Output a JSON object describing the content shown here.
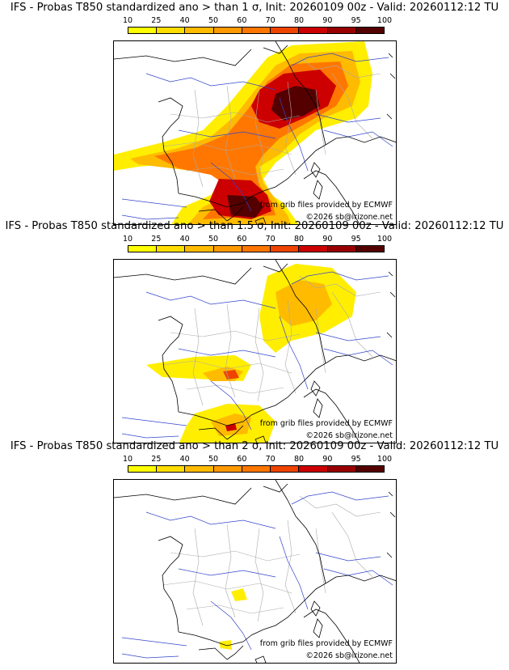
{
  "colorbar": {
    "ticks": [
      "10",
      "25",
      "40",
      "50",
      "60",
      "70",
      "80",
      "90",
      "95",
      "100"
    ],
    "colors": [
      "#ffff00",
      "#ffdd00",
      "#ffbb00",
      "#ff9900",
      "#ff7700",
      "#ee4400",
      "#cc0000",
      "#990000",
      "#550000"
    ]
  },
  "panels": [
    {
      "title": "IFS - Probas T850  standardized ano > than 1 σ, Init: 20260109 00z - Valid: 20260112:12 TU",
      "credit_source": "from grib files provided by ECMWF",
      "credit_copyright": "©2026 sb@irizone.net"
    },
    {
      "title": "IFS - Probas T850  standardized ano > than 1.5 σ, Init: 20260109 00z - Valid: 20260112:12 TU",
      "credit_source": "from grib files provided by ECMWF",
      "credit_copyright": "©2026 sb@irizone.net"
    },
    {
      "title": "IFS - Probas T850  standardized ano > than 2 σ, Init: 20260109 00z - Valid: 20260112:12 TU",
      "credit_source": "from grib files provided by ECMWF",
      "credit_copyright": "©2026 sb@irizone.net"
    }
  ]
}
